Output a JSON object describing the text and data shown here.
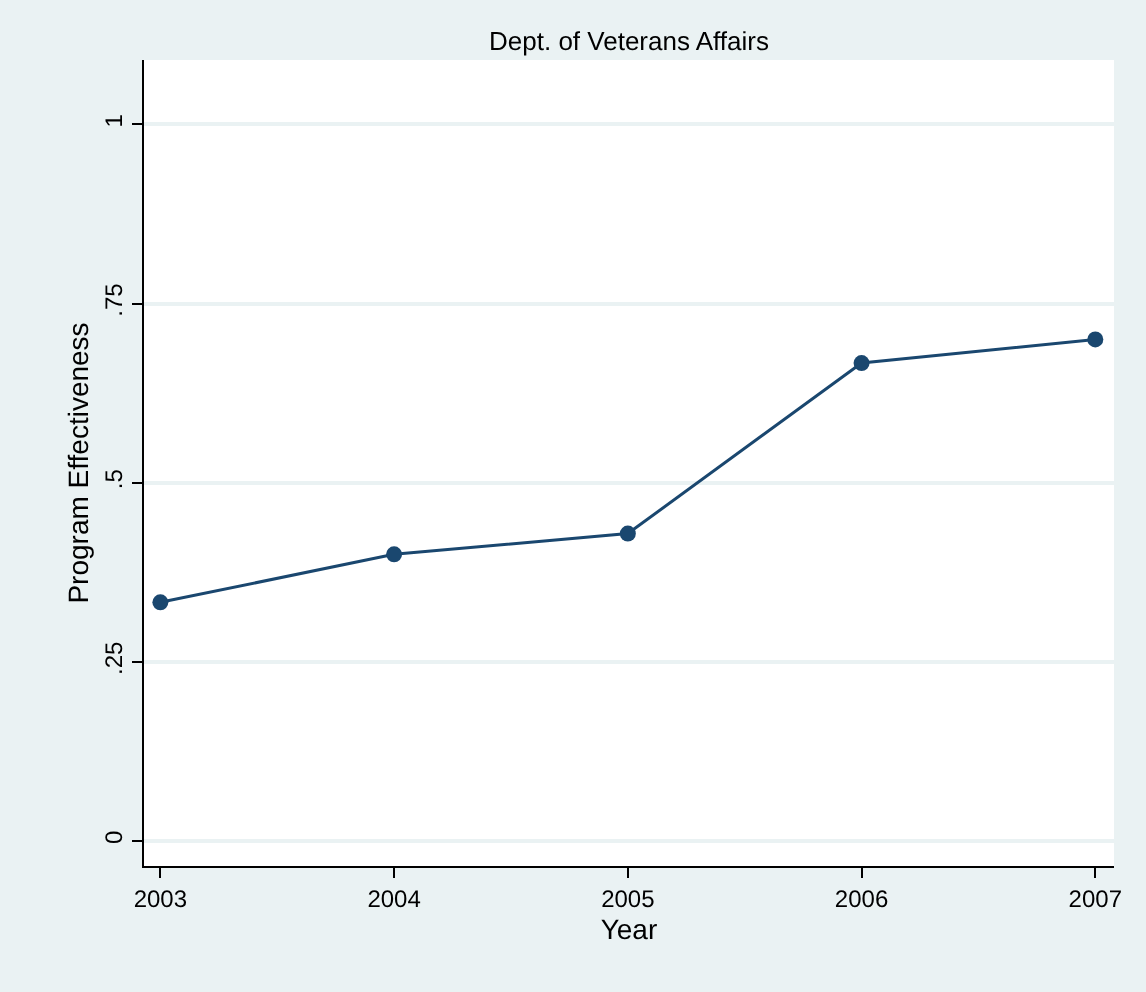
{
  "chart_data": {
    "type": "line",
    "title": "Dept. of Veterans Affairs",
    "xlabel": "Year",
    "ylabel": "Program Effectiveness",
    "x": [
      2003,
      2004,
      2005,
      2006,
      2007
    ],
    "series": [
      {
        "color": "#1a476f",
        "values": [
          0.333,
          0.4,
          0.429,
          0.667,
          0.7
        ]
      }
    ],
    "xlim": [
      2002.93,
      2007.08
    ],
    "ylim": [
      -0.035,
      1.09
    ],
    "xticks": [
      2003,
      2004,
      2005,
      2006,
      2007
    ],
    "yticks": [
      {
        "value": 0,
        "label": "0"
      },
      {
        "value": 0.25,
        "label": ".25"
      },
      {
        "value": 0.5,
        "label": ".5"
      },
      {
        "value": 0.75,
        "label": ".75"
      },
      {
        "value": 1,
        "label": "1"
      }
    ],
    "grid": "y",
    "marker": "circle",
    "line_style": "solid"
  }
}
